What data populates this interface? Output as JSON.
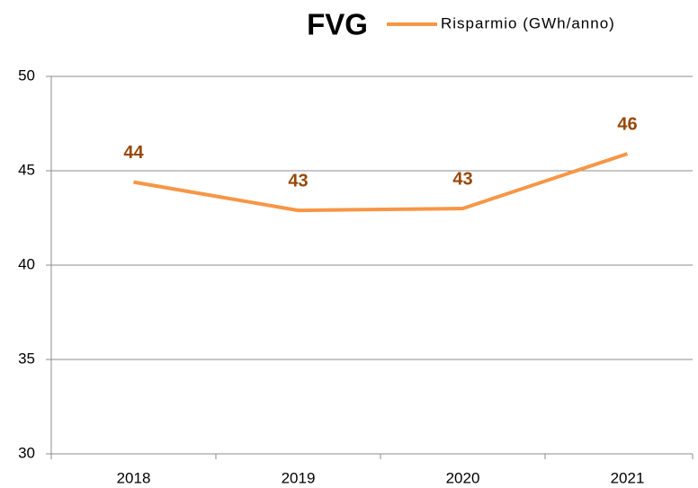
{
  "chart_data": {
    "type": "line",
    "title": "FVG",
    "categories": [
      "2018",
      "2019",
      "2020",
      "2021"
    ],
    "series": [
      {
        "name": "Risparmio (GWh/anno)",
        "color": "#f79646",
        "label_color": "#984807",
        "values": [
          44.4,
          42.9,
          43.0,
          45.9
        ],
        "value_labels": [
          "44",
          "43",
          "43",
          "46"
        ]
      }
    ],
    "ylim": [
      30,
      50
    ],
    "yticks": [
      30,
      35,
      40,
      45,
      50
    ],
    "grid": true
  }
}
